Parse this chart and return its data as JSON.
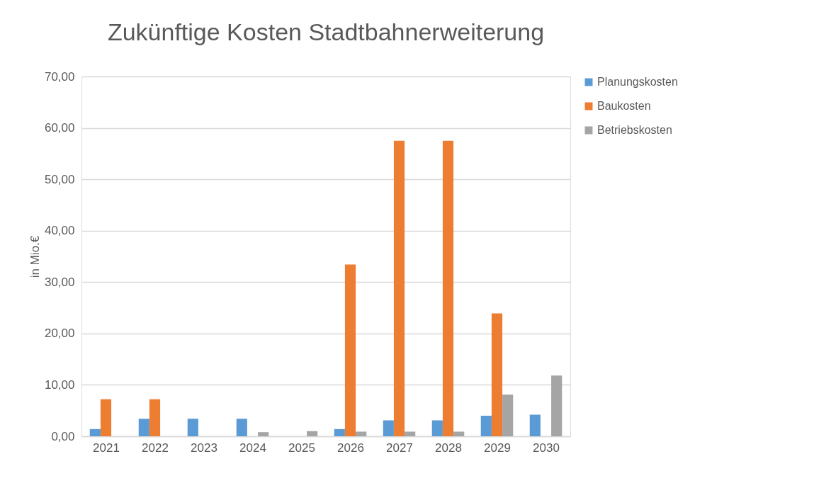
{
  "chart_data": {
    "type": "bar",
    "title": "Zukünftige Kosten Stadtbahnerweiterung",
    "ylabel": "in Mio.€",
    "categories": [
      "2021",
      "2022",
      "2023",
      "2024",
      "2025",
      "2026",
      "2027",
      "2028",
      "2029",
      "2030"
    ],
    "series": [
      {
        "name": "Planungskosten",
        "color": "#5b9bd5",
        "values": [
          1.4,
          3.4,
          3.4,
          3.4,
          0,
          1.4,
          3.1,
          3.1,
          4.0,
          4.2
        ]
      },
      {
        "name": "Baukosten",
        "color": "#ed7d31",
        "values": [
          7.2,
          7.2,
          0,
          0,
          0,
          33.4,
          57.5,
          57.5,
          23.9,
          0
        ]
      },
      {
        "name": "Betriebskosten",
        "color": "#a5a5a5",
        "values": [
          0,
          0,
          0,
          0.8,
          1.0,
          0.9,
          0.9,
          0.9,
          8.1,
          11.8
        ]
      }
    ],
    "ylim": [
      0,
      70
    ],
    "yticks": [
      {
        "value": 0,
        "label": "0,00"
      },
      {
        "value": 10,
        "label": "10,00"
      },
      {
        "value": 20,
        "label": "20,00"
      },
      {
        "value": 30,
        "label": "30,00"
      },
      {
        "value": 40,
        "label": "40,00"
      },
      {
        "value": 50,
        "label": "50,00"
      },
      {
        "value": 60,
        "label": "60,00"
      },
      {
        "value": 70,
        "label": "70,00"
      }
    ],
    "grid": "y",
    "legend": "right"
  }
}
